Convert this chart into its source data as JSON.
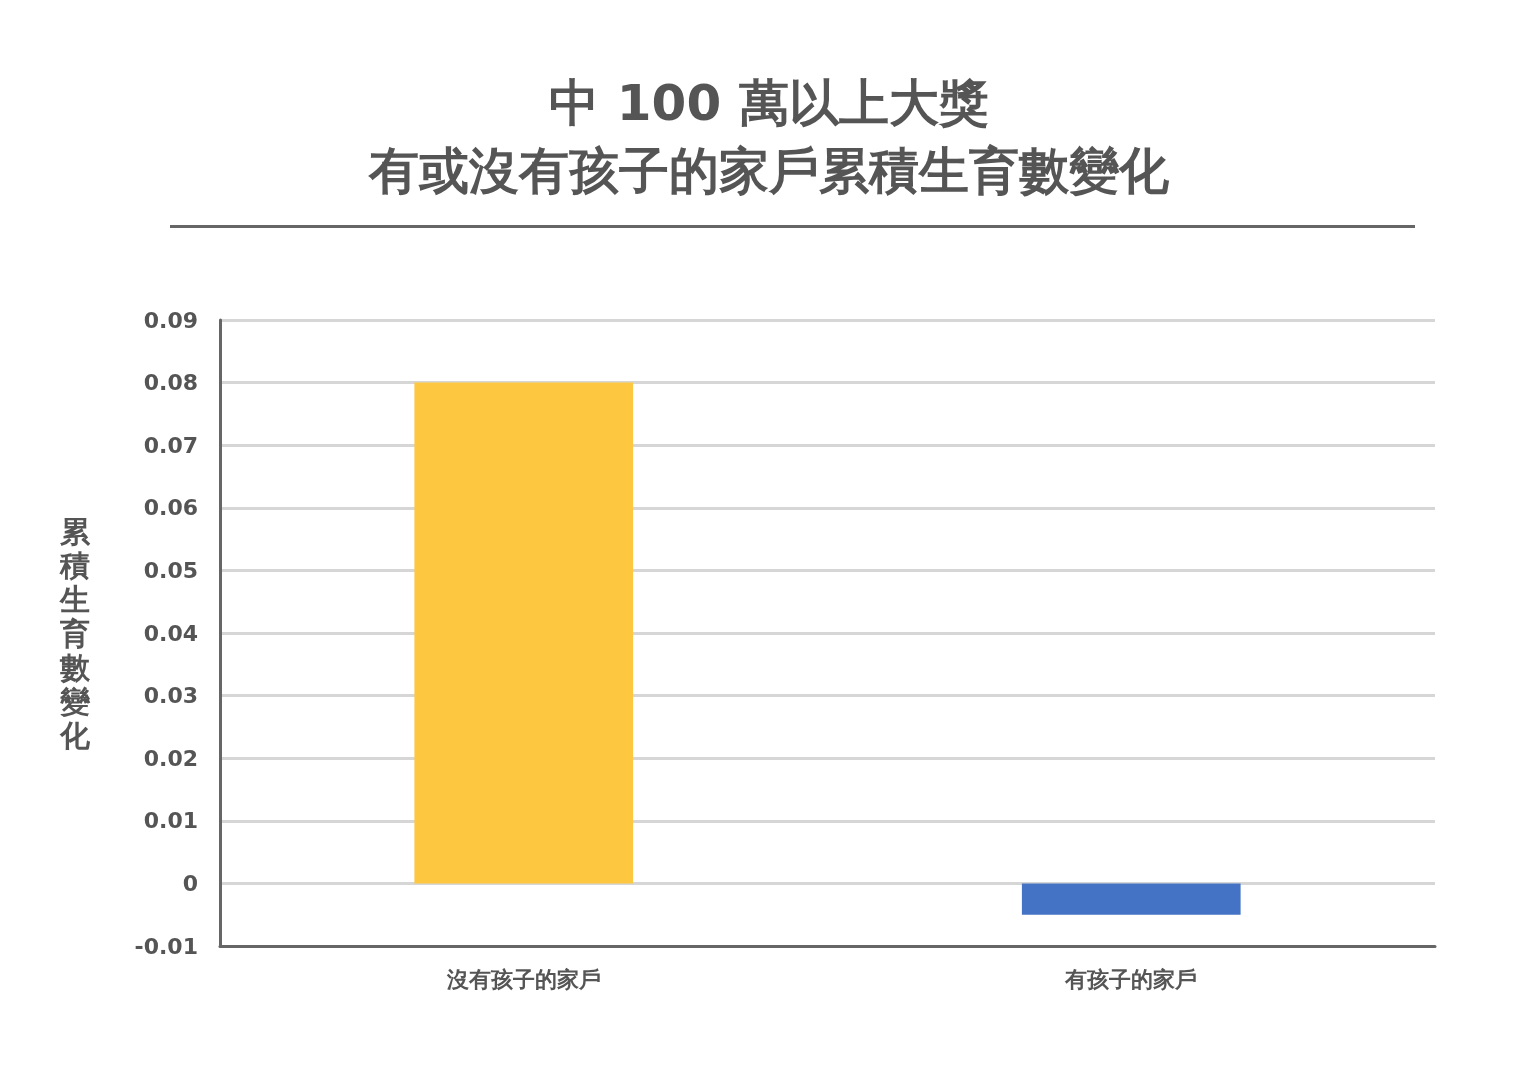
{
  "chart_data": {
    "type": "bar",
    "title": "中 100 萬以上大獎",
    "subtitle": "有或沒有孩子的家戶累積生育數變化",
    "ylabel": "累積生育數變化",
    "categories": [
      "沒有孩子的家戶",
      "有孩子的家戶"
    ],
    "values": [
      0.08,
      -0.005
    ],
    "colors": [
      "#fdc740",
      "#4472c4"
    ],
    "ylim": [
      -0.01,
      0.09
    ],
    "yticks": [
      -0.01,
      0,
      0.01,
      0.02,
      0.03,
      0.04,
      0.05,
      0.06,
      0.07,
      0.08,
      0.09
    ],
    "grid": "y"
  }
}
